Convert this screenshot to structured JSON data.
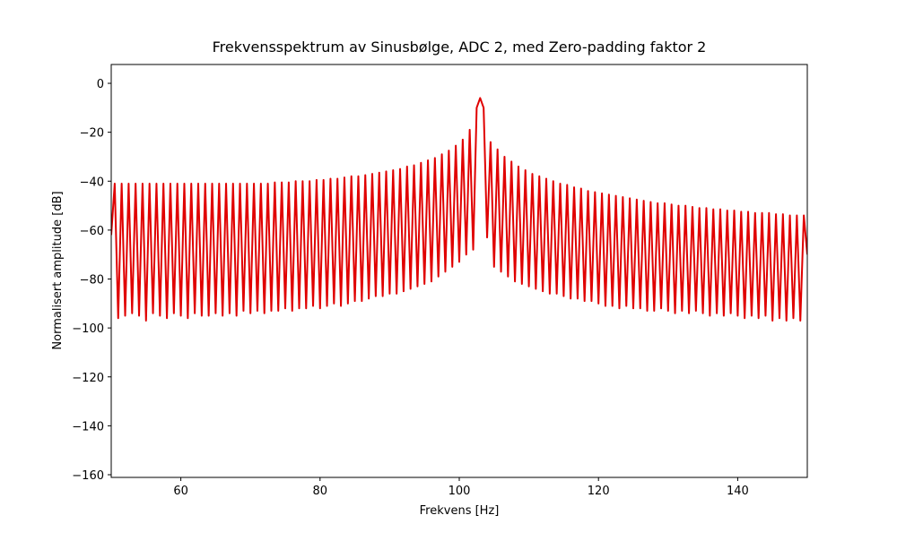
{
  "chart_data": {
    "type": "line",
    "title": "Frekvensspektrum av Sinusbølge, ADC 2, med Zero-padding faktor 2",
    "x_label": "Frekvens [Hz]",
    "y_label": "Normalisert amplitude [dB]",
    "xlim": [
      50,
      150
    ],
    "ylim": [
      -161.1,
      7.7
    ],
    "xticks": [
      60,
      80,
      100,
      120,
      140
    ],
    "yticks": [
      0,
      {
        "value": -20,
        "label": "−20"
      },
      {
        "value": -40,
        "label": "−40"
      },
      {
        "value": -60,
        "label": "−60"
      },
      {
        "value": -80,
        "label": "−80"
      },
      {
        "value": -100,
        "label": "−100"
      },
      {
        "value": -120,
        "label": "−120"
      },
      {
        "value": -140,
        "label": "−140"
      },
      {
        "value": -160,
        "label": "−160"
      }
    ],
    "x": [
      50,
      50.5,
      51,
      51.5,
      52,
      52.5,
      53,
      53.5,
      54,
      54.5,
      55,
      55.5,
      56,
      56.5,
      57,
      57.5,
      58,
      58.5,
      59,
      59.5,
      60,
      60.5,
      61,
      61.5,
      62,
      62.5,
      63,
      63.5,
      64,
      64.5,
      65,
      65.5,
      66,
      66.5,
      67,
      67.5,
      68,
      68.5,
      69,
      69.5,
      70,
      70.5,
      71,
      71.5,
      72,
      72.5,
      73,
      73.5,
      74,
      74.5,
      75,
      75.5,
      76,
      76.5,
      77,
      77.5,
      78,
      78.5,
      79,
      79.5,
      80,
      80.5,
      81,
      81.5,
      82,
      82.5,
      83,
      83.5,
      84,
      84.5,
      85,
      85.5,
      86,
      86.5,
      87,
      87.5,
      88,
      88.5,
      89,
      89.5,
      90,
      90.5,
      91,
      91.5,
      92,
      92.5,
      93,
      93.5,
      94,
      94.5,
      95,
      95.5,
      96,
      96.5,
      97,
      97.5,
      98,
      98.5,
      99,
      99.5,
      100,
      100.5,
      101,
      101.5,
      102,
      102.5,
      103,
      103.5,
      104,
      104.5,
      105,
      105.5,
      106,
      106.5,
      107,
      107.5,
      108,
      108.5,
      109,
      109.5,
      110,
      110.5,
      111,
      111.5,
      112,
      112.5,
      113,
      113.5,
      114,
      114.5,
      115,
      115.5,
      116,
      116.5,
      117,
      117.5,
      118,
      118.5,
      119,
      119.5,
      120,
      120.5,
      121,
      121.5,
      122,
      122.5,
      123,
      123.5,
      124,
      124.5,
      125,
      125.5,
      126,
      126.5,
      127,
      127.5,
      128,
      128.5,
      129,
      129.5,
      130,
      130.5,
      131,
      131.5,
      132,
      132.5,
      133,
      133.5,
      134,
      134.5,
      135,
      135.5,
      136,
      136.5,
      137,
      137.5,
      138,
      138.5,
      139,
      139.5,
      140,
      140.5,
      141,
      141.5,
      142,
      142.5,
      143,
      143.5,
      144,
      144.5,
      145,
      145.5,
      146,
      146.5,
      147,
      147.5,
      148,
      148.5,
      149,
      149.5,
      150
    ],
    "series": [
      {
        "color": "#e00000",
        "values": [
          -62,
          -41,
          -96,
          -41,
          -95,
          -41,
          -94,
          -41,
          -95,
          -41,
          -97,
          -41,
          -94,
          -41,
          -95,
          -41,
          -96,
          -41,
          -94,
          -41,
          -95,
          -41,
          -96,
          -41,
          -94,
          -41,
          -95,
          -41,
          -95,
          -41,
          -94,
          -41,
          -95,
          -41,
          -94,
          -41,
          -95,
          -41,
          -93,
          -41,
          -94,
          -41,
          -93,
          -41,
          -94,
          -41,
          -93,
          -40.5,
          -93,
          -40.5,
          -92,
          -40.5,
          -93,
          -40,
          -92,
          -40,
          -92,
          -40,
          -91,
          -39.5,
          -92,
          -39.5,
          -91,
          -39,
          -90,
          -39,
          -91,
          -38.5,
          -90,
          -38,
          -89,
          -38,
          -89,
          -37.5,
          -88,
          -37,
          -87,
          -36.5,
          -87,
          -36,
          -86,
          -35.5,
          -86,
          -35,
          -85,
          -34,
          -84,
          -33.5,
          -83,
          -32.5,
          -82,
          -31.5,
          -81,
          -30.5,
          -79,
          -29,
          -77,
          -27.5,
          -75,
          -25.5,
          -73,
          -23,
          -70,
          -19,
          -68,
          -10,
          -6,
          -10,
          -63,
          -24,
          -75,
          -27,
          -77,
          -30,
          -79,
          -32,
          -81,
          -34,
          -82,
          -35.5,
          -83,
          -37,
          -84,
          -38,
          -85,
          -39,
          -86,
          -40,
          -86,
          -41,
          -87,
          -41.5,
          -88,
          -42.5,
          -88,
          -43,
          -89,
          -44,
          -89,
          -44.5,
          -90,
          -45,
          -91,
          -45.5,
          -91,
          -46,
          -92,
          -46.5,
          -91,
          -47,
          -92,
          -47.5,
          -92,
          -48,
          -93,
          -48.5,
          -93,
          -49,
          -92,
          -49,
          -93,
          -49.5,
          -94,
          -50,
          -93,
          -50,
          -94,
          -50.5,
          -93,
          -51,
          -94,
          -51,
          -95,
          -51.5,
          -94,
          -51.5,
          -95,
          -52,
          -94,
          -52,
          -95,
          -52.5,
          -96,
          -52.5,
          -95,
          -53,
          -96,
          -53,
          -95,
          -53,
          -97,
          -53.5,
          -96,
          -53.5,
          -97,
          -54,
          -96,
          -54,
          -97,
          -54,
          -70
        ]
      }
    ]
  }
}
